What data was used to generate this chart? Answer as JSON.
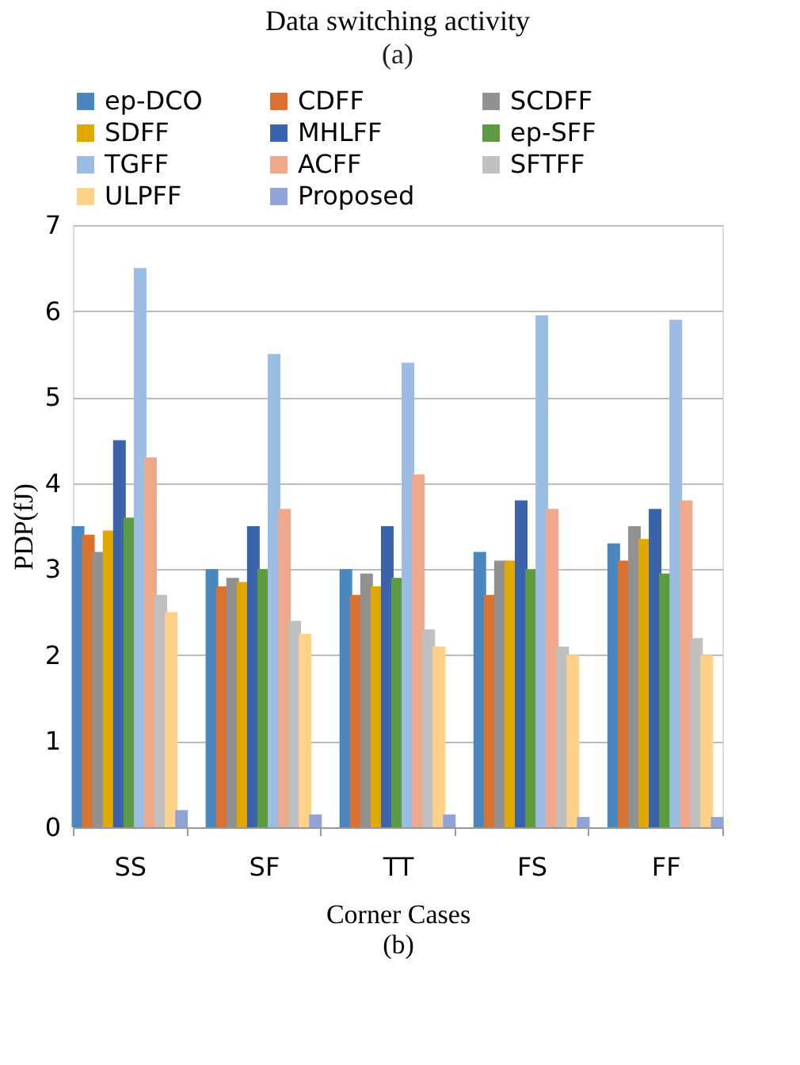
{
  "chart_data": {
    "type": "bar",
    "title": "Data switching activity",
    "subtitle": "(a)",
    "xlabel": "Corner Cases",
    "ylabel": "PDP(fJ)",
    "annotations": [
      "(b)"
    ],
    "categories": [
      "SS",
      "SF",
      "TT",
      "FS",
      "FF"
    ],
    "series": [
      {
        "name": "ep-DCO",
        "color": "#4a86c0",
        "values": [
          3.5,
          3.0,
          3.0,
          3.2,
          3.3
        ]
      },
      {
        "name": "CDFF",
        "color": "#d9712f",
        "values": [
          3.4,
          2.8,
          2.7,
          2.7,
          3.1
        ]
      },
      {
        "name": "SCDFF",
        "color": "#919191",
        "values": [
          3.2,
          2.9,
          2.95,
          3.1,
          3.5
        ]
      },
      {
        "name": "SDFF",
        "color": "#e0a800",
        "values": [
          3.45,
          2.85,
          2.8,
          3.1,
          3.35
        ]
      },
      {
        "name": "MHLFF",
        "color": "#3a63ab",
        "values": [
          4.5,
          3.5,
          3.5,
          3.8,
          3.7
        ]
      },
      {
        "name": "ep-SFF",
        "color": "#5e9a3f",
        "values": [
          3.6,
          3.0,
          2.9,
          3.0,
          2.95
        ]
      },
      {
        "name": "TGFF",
        "color": "#9bbde3",
        "values": [
          6.5,
          5.5,
          5.4,
          5.95,
          5.9
        ]
      },
      {
        "name": "ACFF",
        "color": "#f0a88c",
        "values": [
          4.3,
          3.7,
          4.1,
          3.7,
          3.8
        ]
      },
      {
        "name": "SFTFF",
        "color": "#c0c0c0",
        "values": [
          2.7,
          2.4,
          2.3,
          2.1,
          2.2
        ]
      },
      {
        "name": "ULPFF",
        "color": "#ffd28a",
        "values": [
          2.5,
          2.25,
          2.1,
          2.0,
          2.0
        ]
      },
      {
        "name": "Proposed",
        "color": "#8fa3d6",
        "values": [
          0.2,
          0.15,
          0.15,
          0.12,
          0.12
        ]
      }
    ],
    "ylim": [
      0,
      7
    ],
    "yticks": [
      0,
      1,
      2,
      3,
      4,
      5,
      6,
      7
    ],
    "grid": "y",
    "legend": "top"
  }
}
